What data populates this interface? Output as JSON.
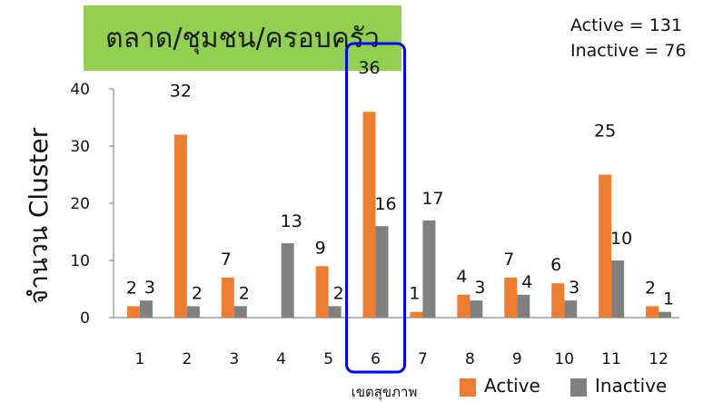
{
  "title": "ตลาด/ชุมชน/ครอบครัว",
  "summary": {
    "active_text": "Active = 131",
    "inactive_text": "Inactive = 76"
  },
  "colors": {
    "title_bg": "#92d050",
    "active": "#ed7d31",
    "inactive": "#808080",
    "highlight": "#0000ff",
    "axis": "#8c8c8c"
  },
  "chart_data": {
    "type": "bar",
    "categories": [
      "1",
      "2",
      "3",
      "4",
      "5",
      "6",
      "7",
      "8",
      "9",
      "10",
      "11",
      "12"
    ],
    "series": [
      {
        "name": "Active",
        "values": [
          2,
          32,
          7,
          0,
          9,
          36,
          1,
          4,
          7,
          6,
          25,
          2
        ]
      },
      {
        "name": "Inactive",
        "values": [
          3,
          2,
          2,
          13,
          2,
          16,
          17,
          3,
          4,
          3,
          10,
          1
        ]
      }
    ],
    "data_labels": {
      "Active": [
        "2",
        "32",
        "7",
        "",
        "9",
        "36",
        "1",
        "4",
        "7",
        "6",
        "25",
        "2"
      ],
      "Inactive": [
        "3",
        "2",
        "2",
        "13",
        "2",
        "16",
        "17",
        "3",
        "4",
        "3",
        "10",
        "1"
      ]
    },
    "xlabel": "เขตสุขภาพ",
    "ylabel": "จำนวน Cluster",
    "yticks": [
      0,
      10,
      20,
      30,
      40
    ],
    "ylim": [
      0,
      40
    ],
    "legend_position": "bottom-right",
    "highlighted_category": "6",
    "grid": false
  }
}
